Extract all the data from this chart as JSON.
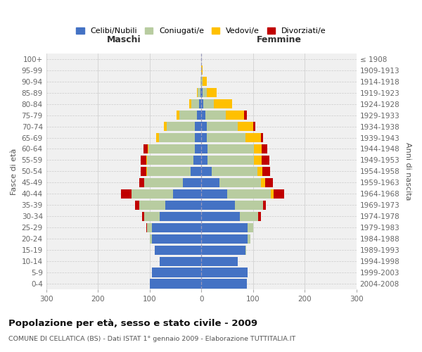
{
  "age_groups": [
    "0-4",
    "5-9",
    "10-14",
    "15-19",
    "20-24",
    "25-29",
    "30-34",
    "35-39",
    "40-44",
    "45-49",
    "50-54",
    "55-59",
    "60-64",
    "65-69",
    "70-74",
    "75-79",
    "80-84",
    "85-89",
    "90-94",
    "95-99",
    "100+"
  ],
  "birth_years": [
    "2004-2008",
    "1999-2003",
    "1994-1998",
    "1989-1993",
    "1984-1988",
    "1979-1983",
    "1974-1978",
    "1969-1973",
    "1964-1968",
    "1959-1963",
    "1954-1958",
    "1949-1953",
    "1944-1948",
    "1939-1943",
    "1934-1938",
    "1929-1933",
    "1924-1928",
    "1919-1923",
    "1914-1918",
    "1909-1913",
    "≤ 1908"
  ],
  "maschi": {
    "celibi": [
      100,
      95,
      80,
      90,
      95,
      95,
      80,
      70,
      55,
      35,
      20,
      15,
      12,
      12,
      12,
      8,
      4,
      2,
      0,
      0,
      0
    ],
    "coniugati": [
      0,
      0,
      0,
      0,
      4,
      10,
      30,
      50,
      80,
      75,
      85,
      90,
      90,
      70,
      55,
      35,
      15,
      5,
      2,
      0,
      0
    ],
    "vedovi": [
      0,
      0,
      0,
      0,
      0,
      0,
      0,
      0,
      0,
      0,
      2,
      2,
      2,
      5,
      5,
      5,
      5,
      2,
      0,
      0,
      0
    ],
    "divorziati": [
      0,
      0,
      0,
      0,
      0,
      2,
      5,
      8,
      20,
      10,
      10,
      10,
      8,
      0,
      0,
      0,
      0,
      0,
      0,
      0,
      0
    ]
  },
  "femmine": {
    "nubili": [
      88,
      90,
      70,
      85,
      90,
      90,
      75,
      65,
      50,
      35,
      20,
      12,
      12,
      10,
      10,
      8,
      4,
      2,
      0,
      0,
      0
    ],
    "coniugate": [
      0,
      0,
      0,
      2,
      5,
      10,
      35,
      55,
      85,
      80,
      88,
      90,
      90,
      75,
      60,
      40,
      20,
      8,
      3,
      0,
      0
    ],
    "vedove": [
      0,
      0,
      0,
      0,
      0,
      0,
      0,
      0,
      5,
      8,
      10,
      15,
      15,
      30,
      30,
      35,
      35,
      20,
      8,
      2,
      0
    ],
    "divorziate": [
      0,
      0,
      0,
      0,
      0,
      0,
      5,
      5,
      20,
      15,
      15,
      15,
      10,
      5,
      5,
      5,
      0,
      0,
      0,
      0,
      0
    ]
  },
  "colors": {
    "celibi": "#4472c4",
    "coniugati": "#b8cca0",
    "vedovi": "#ffc000",
    "divorziati": "#c00000"
  },
  "title": "Popolazione per età, sesso e stato civile - 2009",
  "subtitle": "COMUNE DI CELLATICA (BS) - Dati ISTAT 1° gennaio 2009 - Elaborazione TUTTITALIA.IT",
  "xlabel_left": "Maschi",
  "xlabel_right": "Femmine",
  "ylabel_left": "Fasce di età",
  "ylabel_right": "Anni di nascita",
  "legend_labels": [
    "Celibi/Nubili",
    "Coniugati/e",
    "Vedovi/e",
    "Divorziati/e"
  ],
  "xlim": 300,
  "bg_color": "#ffffff",
  "plot_bg": "#f0f0f0"
}
